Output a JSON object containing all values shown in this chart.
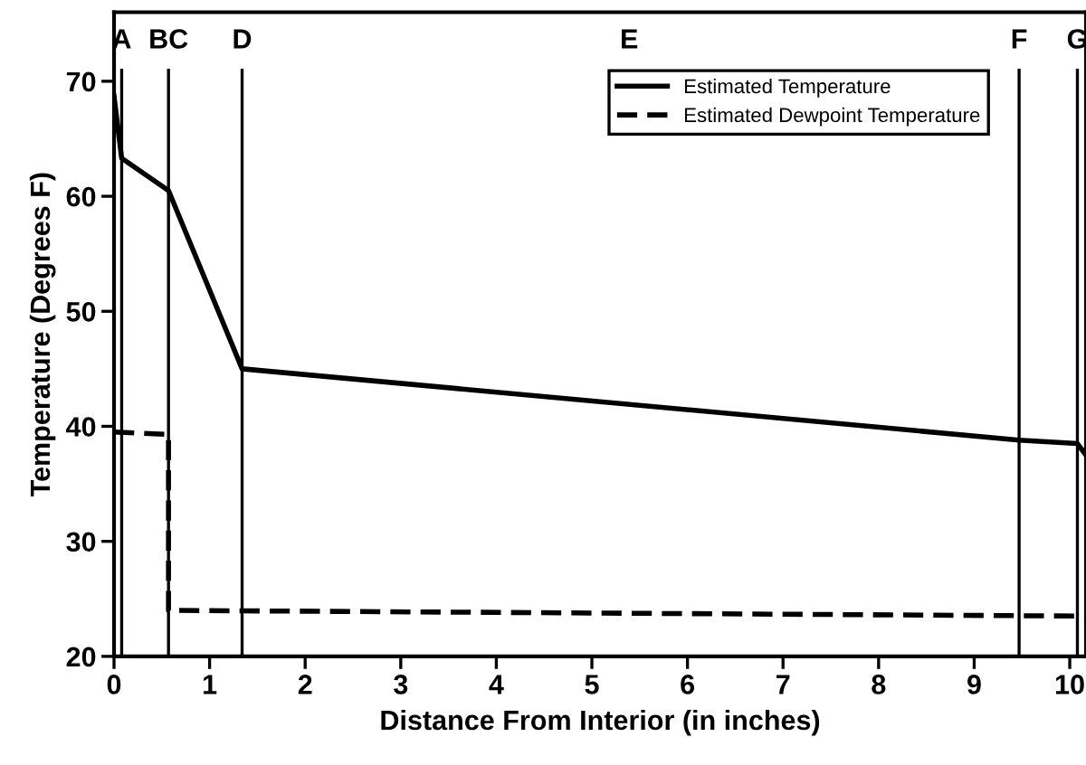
{
  "chart_data": {
    "type": "line",
    "xlabel": "Distance From Interior (in inches)",
    "ylabel": "Temperature (Degrees F)",
    "xlim": [
      0,
      10.17
    ],
    "ylim": [
      20,
      76
    ],
    "xticks": [
      0,
      1,
      2,
      3,
      4,
      5,
      6,
      7,
      8,
      9,
      10
    ],
    "yticks": [
      20,
      30,
      40,
      50,
      60,
      70
    ],
    "grid": false,
    "legend": "top right",
    "marker": "none",
    "series": [
      {
        "name": "Estimated Temperature",
        "color": "#000000",
        "line_style": "solid",
        "x": [
          0,
          0.08,
          0.57,
          1.34,
          9.47,
          10.08,
          10.17
        ],
        "values": [
          68.7,
          63.3,
          60.5,
          45,
          38.8,
          38.5,
          37.5
        ]
      },
      {
        "name": "Estimated Dewpoint Temperature",
        "color": "#000000",
        "line_style": "dashed",
        "x": [
          0,
          0.57,
          0.57,
          10.17
        ],
        "values": [
          39.5,
          39.3,
          24,
          23.5
        ]
      }
    ],
    "ref_lines": [
      {
        "axis": "x",
        "value": 0.08,
        "label": "A",
        "color": "#000000"
      },
      {
        "axis": "x",
        "value": 0.57,
        "label": "BC",
        "color": "#000000"
      },
      {
        "axis": "x",
        "value": 1.34,
        "label": "D",
        "color": "#000000"
      },
      {
        "axis": "x",
        "value": 9.47,
        "label": "F",
        "color": "#000000"
      },
      {
        "axis": "x",
        "value": 10.08,
        "label": "G",
        "color": "#000000"
      }
    ],
    "annotations": [
      "E"
    ]
  }
}
